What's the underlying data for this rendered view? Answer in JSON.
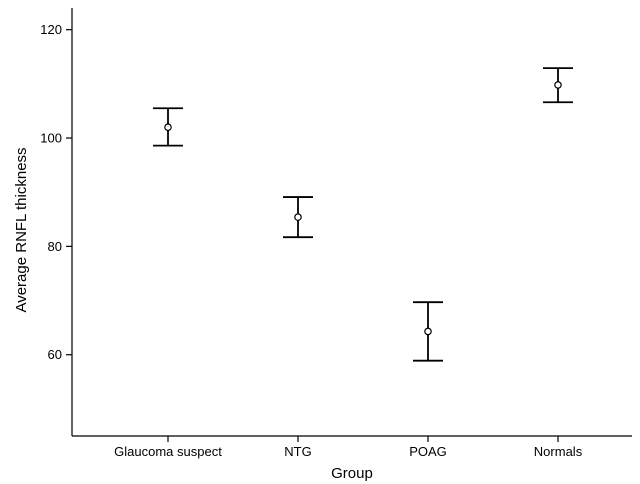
{
  "chart_data": {
    "type": "scatter",
    "title": "",
    "xlabel": "Group",
    "ylabel": "Average RNFL thickness",
    "ylim": [
      45,
      124
    ],
    "yticks": [
      60,
      80,
      100,
      120
    ],
    "grid": false,
    "categories": [
      "Glaucoma suspect",
      "NTG",
      "POAG",
      "Normals"
    ],
    "means": [
      102.0,
      85.4,
      64.3,
      109.8
    ],
    "lower": [
      98.6,
      81.7,
      58.9,
      106.6
    ],
    "upper": [
      105.5,
      89.1,
      69.7,
      112.9
    ]
  }
}
